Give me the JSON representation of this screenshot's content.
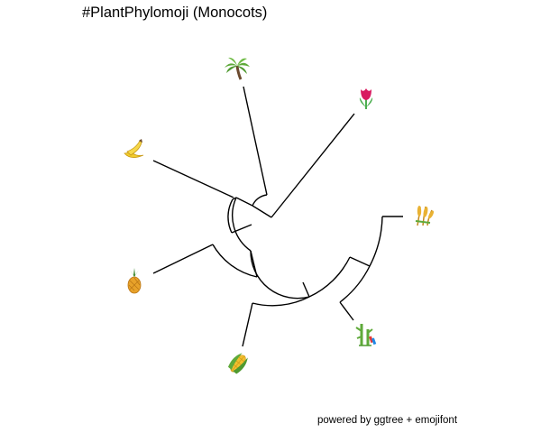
{
  "title": "#PlantPhylomoji (Monocots)",
  "caption": "powered by ggtree + emojifont",
  "colors": {
    "branch": "#000000",
    "background": "#ffffff",
    "palm_leaf": "#5faa3a",
    "palm_trunk": "#6b4a2e",
    "tulip": "#d81b60",
    "stem": "#4caf50",
    "banana": "#f2cc2c",
    "pineapple": "#e8a22a",
    "pineapple_leaf": "#3f8a2f",
    "corn": "#f3c02e",
    "grain": "#e9b233"
  },
  "tips": [
    {
      "id": "palm",
      "icon": "palm-tree-icon"
    },
    {
      "id": "tulip",
      "icon": "tulip-icon"
    },
    {
      "id": "rice",
      "icon": "sheaf-of-rice-icon"
    },
    {
      "id": "bamboo",
      "icon": "tanabata-tree-icon"
    },
    {
      "id": "corn",
      "icon": "ear-of-corn-icon"
    },
    {
      "id": "pineapple",
      "icon": "pineapple-icon"
    },
    {
      "id": "banana",
      "icon": "banana-icon"
    }
  ]
}
